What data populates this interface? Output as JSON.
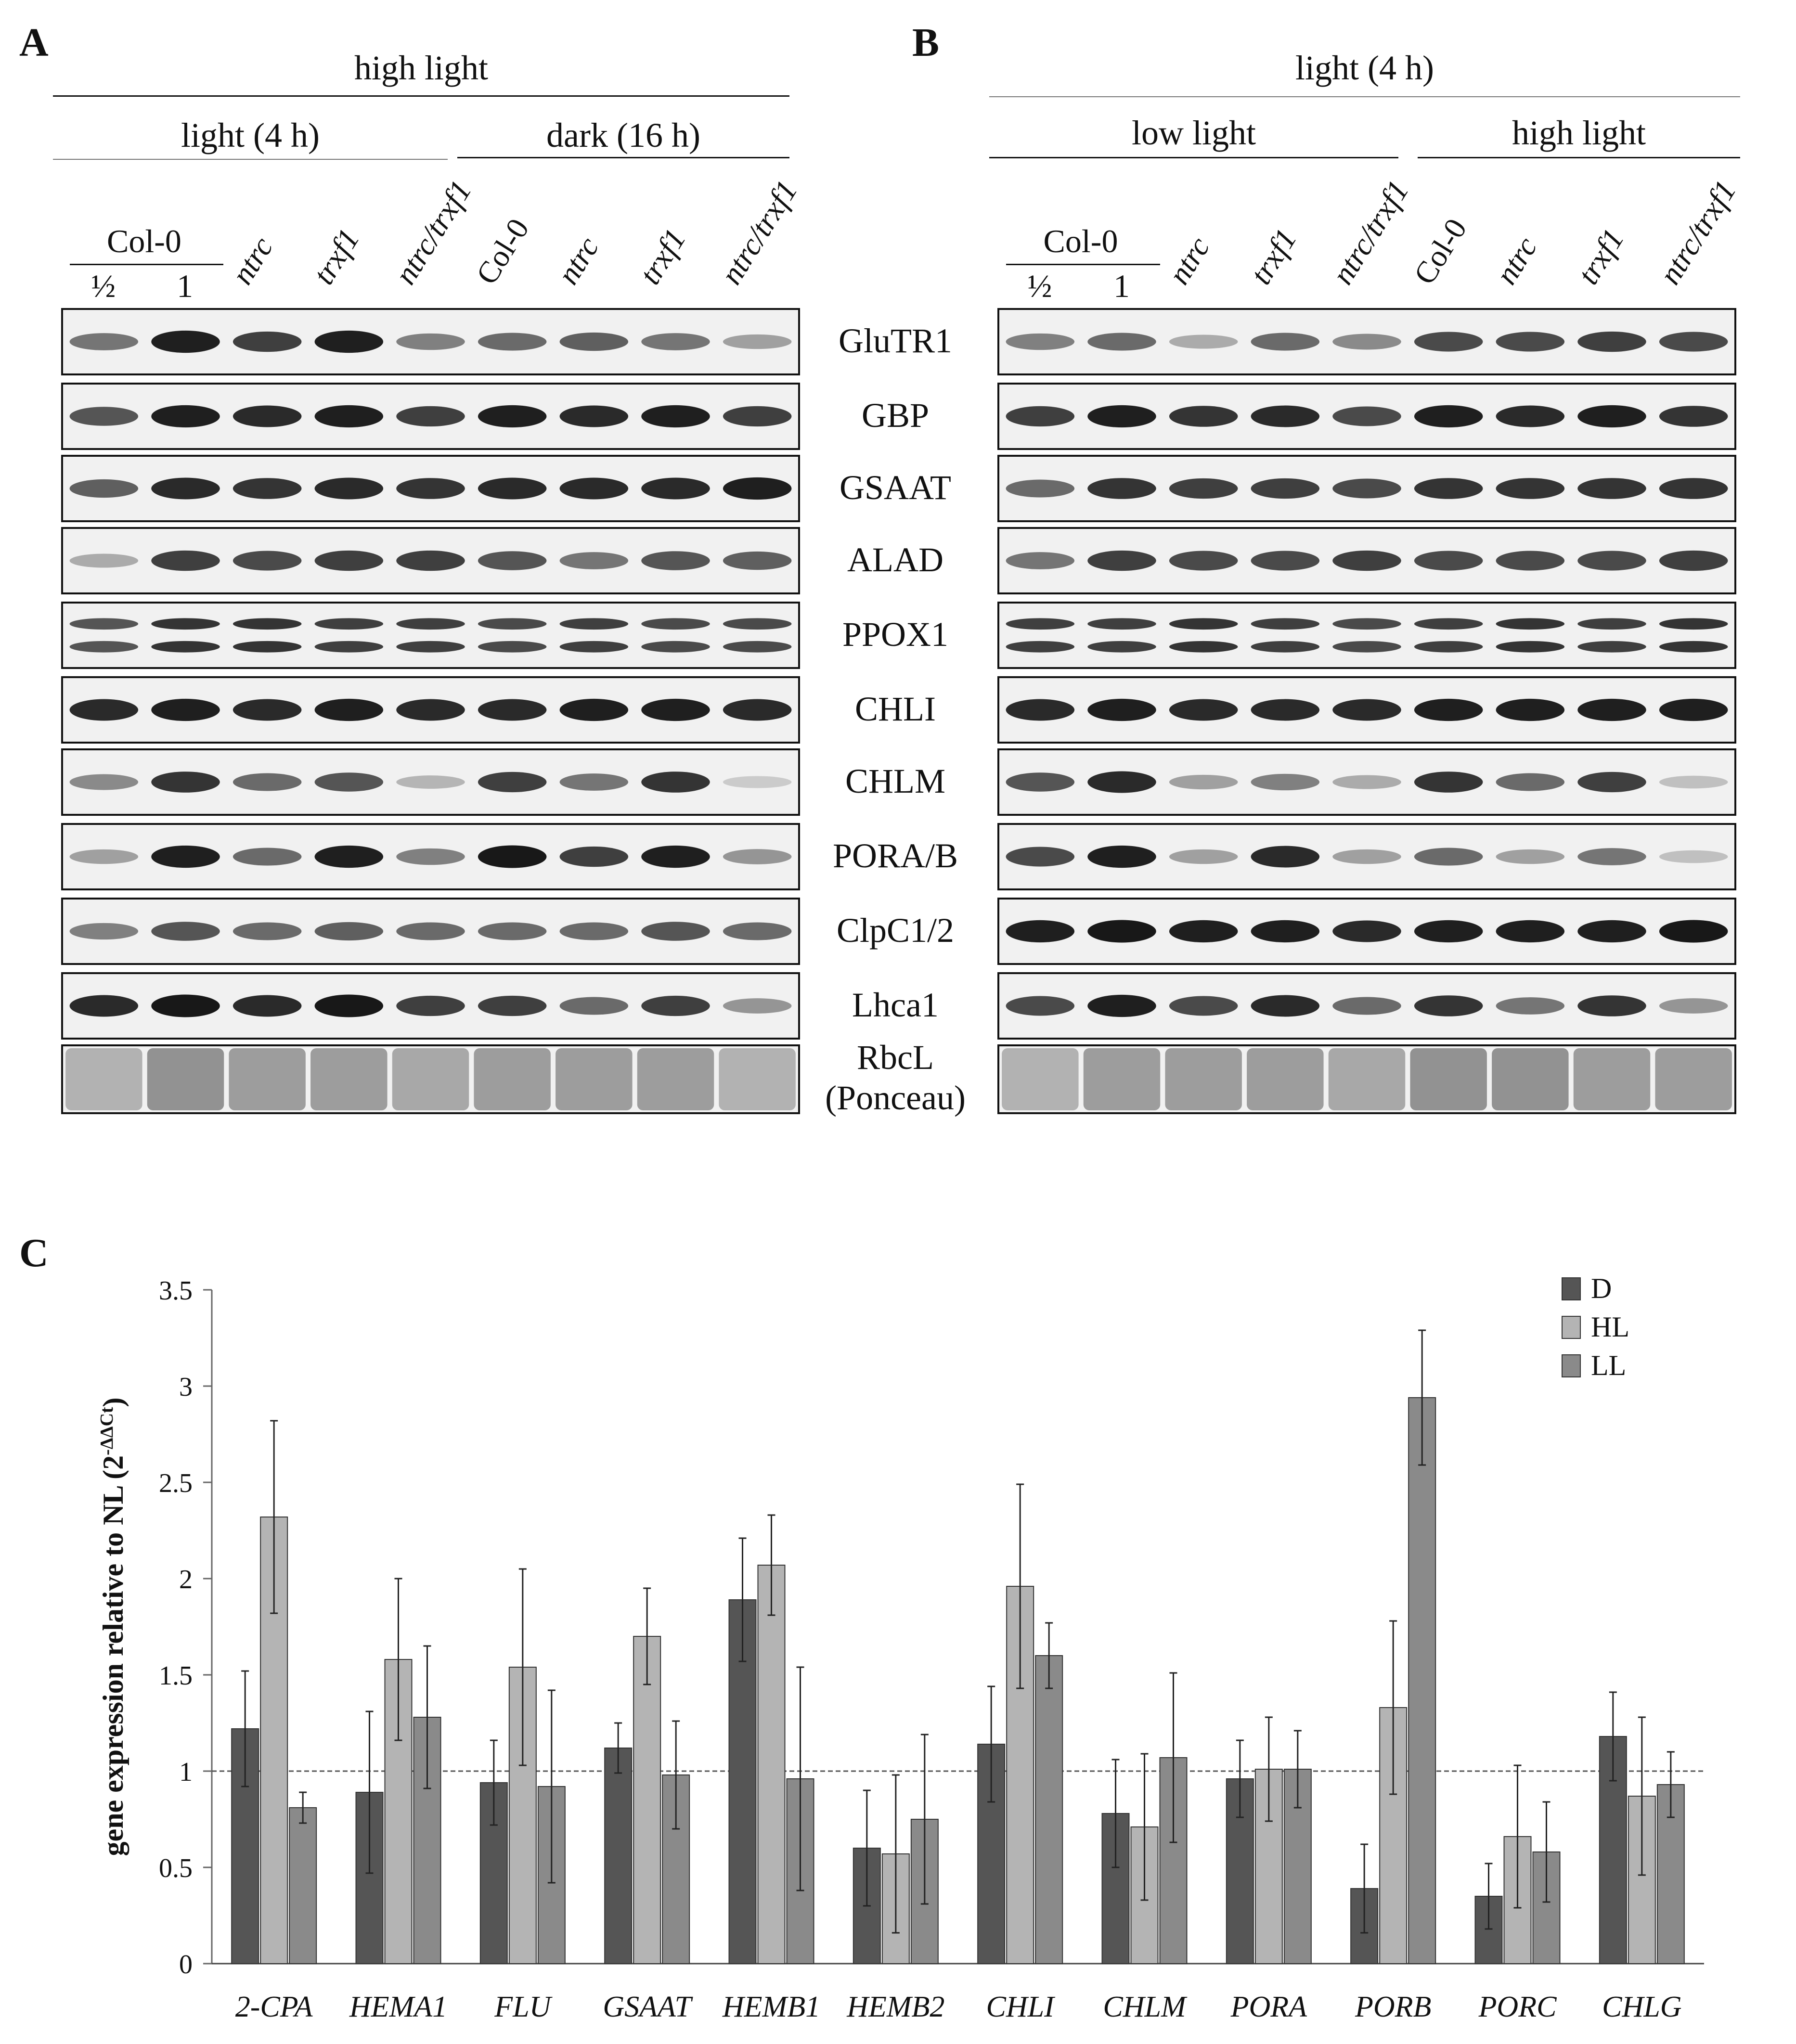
{
  "panels": {
    "A": {
      "letter": "A",
      "header_top": "high light",
      "header_left": "light (4 h)",
      "header_right": "dark  (16 h)",
      "ref_label": "Col-0",
      "lanes": [
        "½",
        "1",
        "ntrc",
        "trxf1",
        "ntrc/trxf1",
        "Col-0",
        "ntrc",
        "trxf1",
        "ntrc/trxf1"
      ]
    },
    "B": {
      "letter": "B",
      "header_top": "light (4 h)",
      "header_left": "low light",
      "header_right": "high light",
      "ref_label": "Col-0",
      "lanes": [
        "½",
        "1",
        "ntrc",
        "trxf1",
        "ntrc/trxf1",
        "Col-0",
        "ntrc",
        "trxf1",
        "ntrc/trxf1"
      ]
    },
    "C": {
      "letter": "C"
    }
  },
  "proteins": [
    "GluTR1",
    "GBP",
    "GSAAT",
    "ALAD",
    "PPOX1",
    "CHLI",
    "CHLM",
    "PORA/B",
    "ClpC1/2",
    "Lhca1",
    "RbcL\n(Ponceau)"
  ],
  "chart_data": {
    "type": "bar",
    "categories": [
      "2-CPA",
      "HEMA1",
      "FLU",
      "GSAAT",
      "HEMB1",
      "HEMB2",
      "CHLI",
      "CHLM",
      "PORA",
      "PORB",
      "PORC",
      "CHLG"
    ],
    "series": [
      {
        "name": "D",
        "color": "#555555",
        "values": [
          1.22,
          0.89,
          0.94,
          1.12,
          1.89,
          0.6,
          1.14,
          0.78,
          0.96,
          0.39,
          0.35,
          1.18
        ],
        "errors": [
          0.3,
          0.42,
          0.22,
          0.13,
          0.32,
          0.3,
          0.3,
          0.28,
          0.2,
          0.23,
          0.17,
          0.23
        ]
      },
      {
        "name": "HL",
        "color": "#b4b4b4",
        "values": [
          2.32,
          1.58,
          1.54,
          1.7,
          2.07,
          0.57,
          1.96,
          0.71,
          1.01,
          1.33,
          0.66,
          0.87
        ],
        "errors": [
          0.5,
          0.42,
          0.51,
          0.25,
          0.26,
          0.41,
          0.53,
          0.38,
          0.27,
          0.45,
          0.37,
          0.41
        ]
      },
      {
        "name": "LL",
        "color": "#8a8a8a",
        "values": [
          0.81,
          1.28,
          0.92,
          0.98,
          0.96,
          0.75,
          1.6,
          1.07,
          1.01,
          2.94,
          0.58,
          0.93
        ],
        "errors": [
          0.08,
          0.37,
          0.5,
          0.28,
          0.58,
          0.44,
          0.17,
          0.44,
          0.2,
          0.35,
          0.26,
          0.17
        ]
      }
    ],
    "ylabel": "gene expression relative  to NL (2",
    "ylabel_sup": "-ΔΔCt",
    "ylabel_end": ")",
    "ylim": [
      0,
      3.5
    ],
    "yticks": [
      "0",
      "0.5",
      "1",
      "1.5",
      "2",
      "2.5",
      "3",
      "3.5"
    ],
    "ytick_values": [
      0,
      0.5,
      1,
      1.5,
      2,
      2.5,
      3,
      3.5
    ],
    "reference_line": 1,
    "legend_position": "top-right",
    "grid": false
  }
}
